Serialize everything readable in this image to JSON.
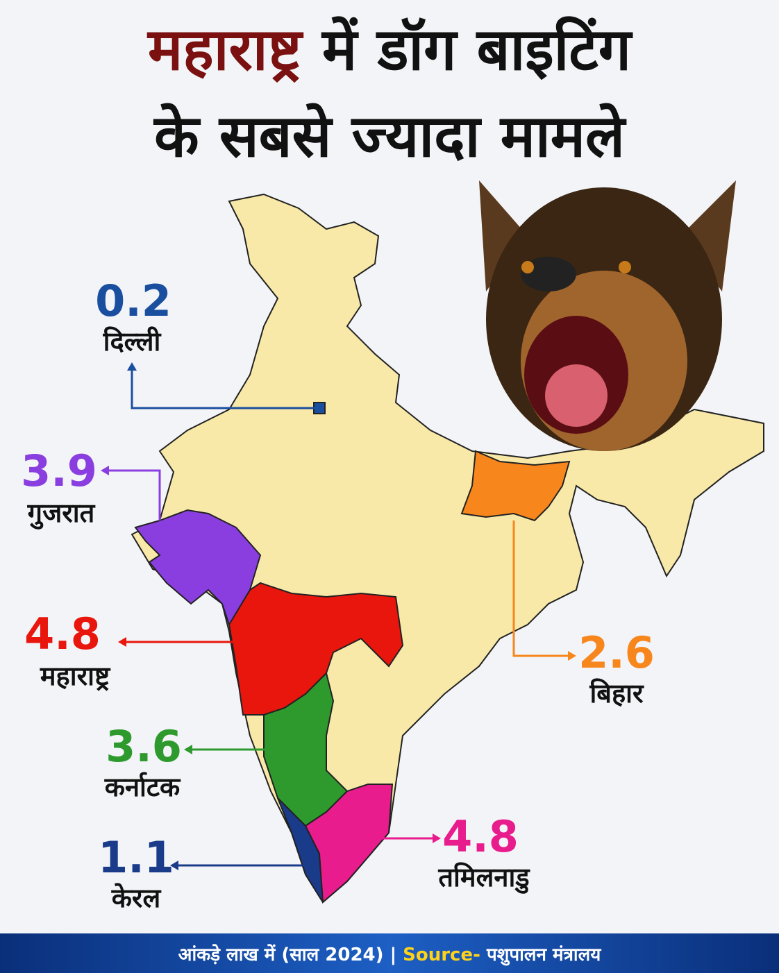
{
  "title": {
    "highlight": "महाराष्ट्र",
    "rest": "में डॉग बाइटिंग",
    "line2": "के सबसे ज्यादा मामले"
  },
  "regions": [
    {
      "name": "दिल्ली",
      "value": 0.2,
      "color": "#1a4fa0"
    },
    {
      "name": "गुजरात",
      "value": 3.9,
      "color": "#8a3ee0"
    },
    {
      "name": "महाराष्ट्र",
      "value": 4.8,
      "color": "#e8160c"
    },
    {
      "name": "कर्नाटक",
      "value": 3.6,
      "color": "#2e9a2e"
    },
    {
      "name": "केरल",
      "value": 1.1,
      "color": "#1a3a8a"
    },
    {
      "name": "तमिलनाडु",
      "value": 4.8,
      "color": "#e81c8c"
    },
    {
      "name": "बिहार",
      "value": 2.6,
      "color": "#f7861d"
    }
  ],
  "footer": {
    "note": "आंकड़े लाख में (साल 2024) |",
    "source_label": "Source-",
    "source": "पशुपालन मंत्रालय"
  }
}
